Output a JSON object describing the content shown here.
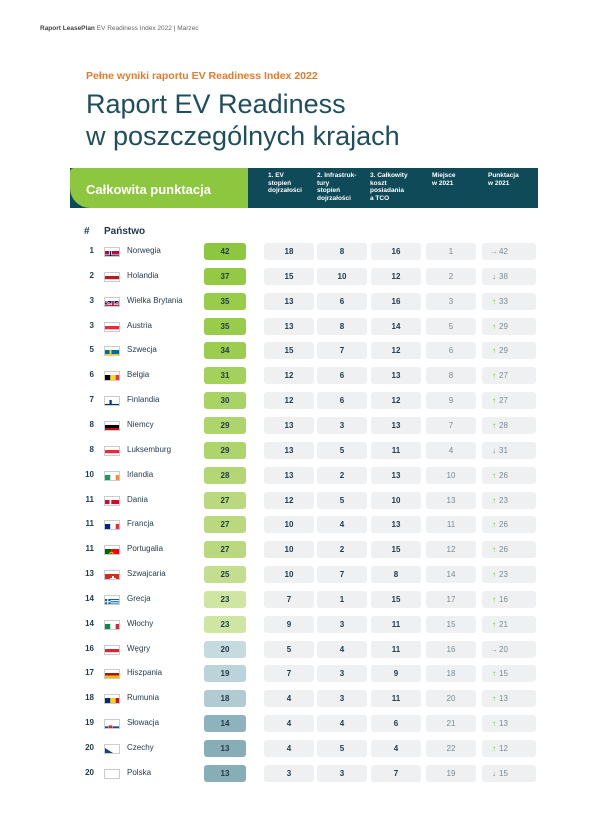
{
  "header": {
    "top_line_bold": "Raport LeasePlan",
    "top_line_rest": " EV Readiness Index 2022 | Marzec",
    "kicker": "Pełne wyniki raportu EV Readiness Index 2022",
    "title_line1": "Raport EV Readiness",
    "title_line2": "w poszczególnych krajach"
  },
  "table": {
    "total_label": "Całkowita punktacja",
    "col1": [
      "1. EV",
      "stopień",
      "dojrzałości"
    ],
    "col2": [
      "2. Infrastruk-",
      "tury",
      "stopień",
      "dojrzałości"
    ],
    "col3": [
      "3. Całkowity",
      "koszt",
      "posiadania",
      "a TCO"
    ],
    "col4": [
      "Miejsce",
      "w 2021"
    ],
    "col5": [
      "Punktacja",
      "w 2021"
    ],
    "hash": "#",
    "country_header": "Państwo",
    "rows": [
      {
        "rank": "1",
        "country": "Norwegia",
        "flag": "no",
        "score": "42",
        "c1": "18",
        "c2": "8",
        "c3": "16",
        "place2021": "1",
        "trend": "right",
        "pts2021": "42",
        "color": "#8dc63f"
      },
      {
        "rank": "2",
        "country": "Holandia",
        "flag": "nl",
        "score": "37",
        "c1": "15",
        "c2": "10",
        "c3": "12",
        "place2021": "2",
        "trend": "down",
        "pts2021": "38",
        "color": "#94c944"
      },
      {
        "rank": "3",
        "country": "Wielka Brytania",
        "flag": "gb",
        "score": "35",
        "c1": "13",
        "c2": "6",
        "c3": "16",
        "place2021": "3",
        "trend": "up",
        "pts2021": "33",
        "color": "#99cc4b"
      },
      {
        "rank": "3",
        "country": "Austria",
        "flag": "at",
        "score": "35",
        "c1": "13",
        "c2": "8",
        "c3": "14",
        "place2021": "5",
        "trend": "up",
        "pts2021": "29",
        "color": "#99cc4b"
      },
      {
        "rank": "5",
        "country": "Szwecja",
        "flag": "se",
        "score": "34",
        "c1": "15",
        "c2": "7",
        "c3": "12",
        "place2021": "6",
        "trend": "up",
        "pts2021": "29",
        "color": "#9ccd50"
      },
      {
        "rank": "6",
        "country": "Belgia",
        "flag": "be",
        "score": "31",
        "c1": "12",
        "c2": "6",
        "c3": "13",
        "place2021": "8",
        "trend": "up",
        "pts2021": "27",
        "color": "#a4d05c"
      },
      {
        "rank": "7",
        "country": "Finlandia",
        "flag": "fi",
        "score": "30",
        "c1": "12",
        "c2": "6",
        "c3": "12",
        "place2021": "9",
        "trend": "up",
        "pts2021": "27",
        "color": "#a9d365"
      },
      {
        "rank": "8",
        "country": "Niemcy",
        "flag": "de",
        "score": "29",
        "c1": "13",
        "c2": "3",
        "c3": "13",
        "place2021": "7",
        "trend": "up",
        "pts2021": "28",
        "color": "#aed46c"
      },
      {
        "rank": "8",
        "country": "Luksemburg",
        "flag": "lu",
        "score": "29",
        "c1": "13",
        "c2": "5",
        "c3": "11",
        "place2021": "4",
        "trend": "down",
        "pts2021": "31",
        "color": "#aed46c"
      },
      {
        "rank": "10",
        "country": "Irlandia",
        "flag": "ie",
        "score": "28",
        "c1": "13",
        "c2": "2",
        "c3": "13",
        "place2021": "10",
        "trend": "up",
        "pts2021": "26",
        "color": "#b4d776"
      },
      {
        "rank": "11",
        "country": "Dania",
        "flag": "dk",
        "score": "27",
        "c1": "12",
        "c2": "5",
        "c3": "10",
        "place2021": "13",
        "trend": "up",
        "pts2021": "23",
        "color": "#bad97f"
      },
      {
        "rank": "11",
        "country": "Francja",
        "flag": "fr",
        "score": "27",
        "c1": "10",
        "c2": "4",
        "c3": "13",
        "place2021": "11",
        "trend": "up",
        "pts2021": "26",
        "color": "#bad97f"
      },
      {
        "rank": "11",
        "country": "Portugalia",
        "flag": "pt",
        "score": "27",
        "c1": "10",
        "c2": "2",
        "c3": "15",
        "place2021": "12",
        "trend": "up",
        "pts2021": "26",
        "color": "#bad97f"
      },
      {
        "rank": "13",
        "country": "Szwajcaria",
        "flag": "ch",
        "score": "25",
        "c1": "10",
        "c2": "7",
        "c3": "8",
        "place2021": "14",
        "trend": "up",
        "pts2021": "23",
        "color": "#c3de8e"
      },
      {
        "rank": "14",
        "country": "Grecja",
        "flag": "gr",
        "score": "23",
        "c1": "7",
        "c2": "1",
        "c3": "15",
        "place2021": "17",
        "trend": "up",
        "pts2021": "16",
        "color": "#cfe5a2"
      },
      {
        "rank": "14",
        "country": "Włochy",
        "flag": "it",
        "score": "23",
        "c1": "9",
        "c2": "3",
        "c3": "11",
        "place2021": "15",
        "trend": "up",
        "pts2021": "21",
        "color": "#cfe5a2"
      },
      {
        "rank": "16",
        "country": "Węgry",
        "flag": "hu",
        "score": "20",
        "c1": "5",
        "c2": "4",
        "c3": "11",
        "place2021": "16",
        "trend": "right",
        "pts2021": "20",
        "color": "#c6dbe0"
      },
      {
        "rank": "17",
        "country": "Hiszpania",
        "flag": "es",
        "score": "19",
        "c1": "7",
        "c2": "3",
        "c3": "9",
        "place2021": "18",
        "trend": "up",
        "pts2021": "15",
        "color": "#bcd3d9"
      },
      {
        "rank": "18",
        "country": "Rumunia",
        "flag": "ro",
        "score": "18",
        "c1": "4",
        "c2": "3",
        "c3": "11",
        "place2021": "20",
        "trend": "up",
        "pts2021": "13",
        "color": "#b2cbd2"
      },
      {
        "rank": "19",
        "country": "Słowacja",
        "flag": "sk",
        "score": "14",
        "c1": "4",
        "c2": "4",
        "c3": "6",
        "place2021": "21",
        "trend": "up",
        "pts2021": "13",
        "color": "#8fb3bc"
      },
      {
        "rank": "20",
        "country": "Czechy",
        "flag": "cz",
        "score": "13",
        "c1": "4",
        "c2": "5",
        "c3": "4",
        "place2021": "22",
        "trend": "up",
        "pts2021": "12",
        "color": "#87adb7"
      },
      {
        "rank": "20",
        "country": "Polska",
        "flag": "pl",
        "score": "13",
        "c1": "3",
        "c2": "3",
        "c3": "7",
        "place2021": "19",
        "trend": "down",
        "pts2021": "15",
        "color": "#87adb7"
      }
    ]
  }
}
